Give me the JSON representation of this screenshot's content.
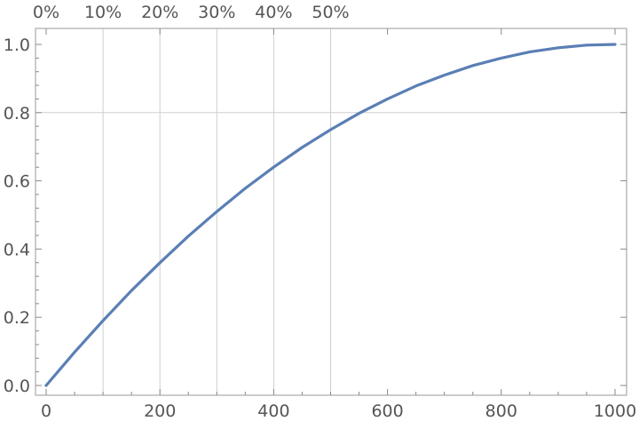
{
  "chart_data": {
    "type": "line",
    "title": "",
    "xlabel": "",
    "ylabel": "",
    "xlim": [
      0,
      1000
    ],
    "ylim": [
      0,
      1
    ],
    "x_ticks": [
      0,
      200,
      400,
      600,
      800,
      1000
    ],
    "x_tick_labels": [
      "0",
      "200",
      "400",
      "600",
      "800",
      "1000"
    ],
    "y_ticks": [
      0,
      0.2,
      0.4,
      0.6,
      0.8,
      1.0
    ],
    "y_tick_labels": [
      "0.0",
      "0.2",
      "0.4",
      "0.6",
      "0.8",
      "1.0"
    ],
    "top_axis": {
      "ticks": [
        0,
        100,
        200,
        300,
        400,
        500
      ],
      "labels": [
        "0%",
        "10%",
        "20%",
        "30%",
        "40%",
        "50%"
      ]
    },
    "grid": {
      "vertical_at_x": [
        100,
        200,
        300,
        400,
        500
      ],
      "horizontal_at_y": [
        0.8
      ]
    },
    "series": [
      {
        "color": "#5b7fb5",
        "x": [
          0,
          50,
          100,
          150,
          200,
          250,
          300,
          350,
          400,
          450,
          500,
          550,
          600,
          650,
          700,
          750,
          800,
          850,
          900,
          950,
          1000
        ],
        "y": [
          0,
          0.098,
          0.19,
          0.278,
          0.36,
          0.438,
          0.51,
          0.578,
          0.64,
          0.698,
          0.75,
          0.798,
          0.84,
          0.878,
          0.91,
          0.938,
          0.96,
          0.978,
          0.99,
          0.998,
          1.0
        ]
      }
    ]
  }
}
